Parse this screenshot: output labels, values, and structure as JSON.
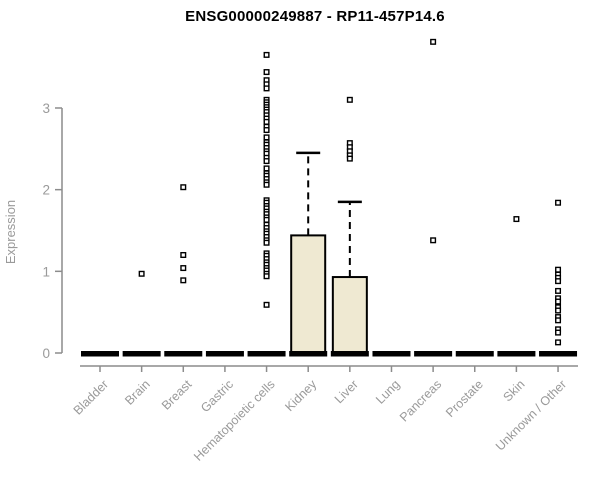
{
  "chart_data": {
    "type": "boxplot",
    "title": "ENSG00000249887 - RP11-457P14.6",
    "ylabel": "Expression",
    "xlabel": "",
    "yticks": [
      0,
      1,
      2,
      3
    ],
    "ylim": [
      0,
      3.85
    ],
    "grid": false,
    "legend": "none",
    "categories": [
      "Bladder",
      "Brain",
      "Breast",
      "Gastric",
      "Hematopoietic cells",
      "Kidney",
      "Liver",
      "Lung",
      "Pancreas",
      "Prostate",
      "Skin",
      "Unknown / Other"
    ],
    "boxes": [
      {
        "category": "Bladder",
        "median": 0,
        "q1": 0,
        "q3": 0,
        "whisker_low": 0,
        "whisker_high": 0,
        "outliers": []
      },
      {
        "category": "Brain",
        "median": 0,
        "q1": 0,
        "q3": 0,
        "whisker_low": 0,
        "whisker_high": 0,
        "outliers": [
          0.97
        ]
      },
      {
        "category": "Breast",
        "median": 0,
        "q1": 0,
        "q3": 0,
        "whisker_low": 0,
        "whisker_high": 0,
        "outliers": [
          2.03,
          1.2,
          1.04,
          0.89
        ]
      },
      {
        "category": "Gastric",
        "median": 0,
        "q1": 0,
        "q3": 0,
        "whisker_low": 0,
        "whisker_high": 0,
        "outliers": []
      },
      {
        "category": "Hematopoietic cells",
        "median": 0,
        "q1": 0,
        "q3": 0,
        "whisker_low": 0,
        "whisker_high": 0,
        "outliers": [
          3.65,
          3.44,
          3.34,
          3.29,
          3.24,
          3.1,
          3.07,
          3.04,
          3.01,
          2.98,
          2.95,
          2.91,
          2.87,
          2.83,
          2.77,
          2.73,
          2.64,
          2.58,
          2.55,
          2.51,
          2.47,
          2.44,
          2.39,
          2.35,
          2.26,
          2.2,
          2.17,
          2.13,
          2.09,
          2.06,
          1.87,
          1.84,
          1.8,
          1.77,
          1.73,
          1.7,
          1.66,
          1.63,
          1.57,
          1.53,
          1.49,
          1.46,
          1.42,
          1.38,
          1.35,
          1.22,
          1.19,
          1.15,
          1.11,
          1.08,
          1.04,
          1.01,
          0.97,
          0.94,
          0.59
        ]
      },
      {
        "category": "Kidney",
        "median": 0,
        "q1": 0,
        "q3": 1.44,
        "whisker_low": 0,
        "whisker_high": 2.45,
        "outliers": []
      },
      {
        "category": "Liver",
        "median": 0,
        "q1": 0,
        "q3": 0.93,
        "whisker_low": 0,
        "whisker_high": 1.85,
        "outliers": [
          3.1,
          2.57,
          2.52,
          2.47,
          2.42,
          2.38
        ]
      },
      {
        "category": "Lung",
        "median": 0,
        "q1": 0,
        "q3": 0,
        "whisker_low": 0,
        "whisker_high": 0,
        "outliers": []
      },
      {
        "category": "Pancreas",
        "median": 0,
        "q1": 0,
        "q3": 0,
        "whisker_low": 0,
        "whisker_high": 0,
        "outliers": [
          3.81,
          1.38
        ]
      },
      {
        "category": "Prostate",
        "median": 0,
        "q1": 0,
        "q3": 0,
        "whisker_low": 0,
        "whisker_high": 0,
        "outliers": []
      },
      {
        "category": "Skin",
        "median": 0,
        "q1": 0,
        "q3": 0,
        "whisker_low": 0,
        "whisker_high": 0,
        "outliers": [
          1.64
        ]
      },
      {
        "category": "Unknown / Other",
        "median": 0,
        "q1": 0,
        "q3": 0,
        "whisker_low": 0,
        "whisker_high": 0,
        "outliers": [
          1.84,
          1.02,
          0.96,
          0.92,
          0.88,
          0.76,
          0.67,
          0.63,
          0.56,
          0.52,
          0.44,
          0.4,
          0.29,
          0.25,
          0.13
        ]
      }
    ],
    "colors": {
      "background": "#ffffff",
      "box_fill": "#EFE9D2",
      "box_stroke": "#000000",
      "median": "#000000",
      "outlier_fill": "#ffffff",
      "outlier_stroke": "#000000",
      "axis": "#8c8c8c",
      "tick_label": "#9a9a9a",
      "title": "#000000"
    }
  }
}
